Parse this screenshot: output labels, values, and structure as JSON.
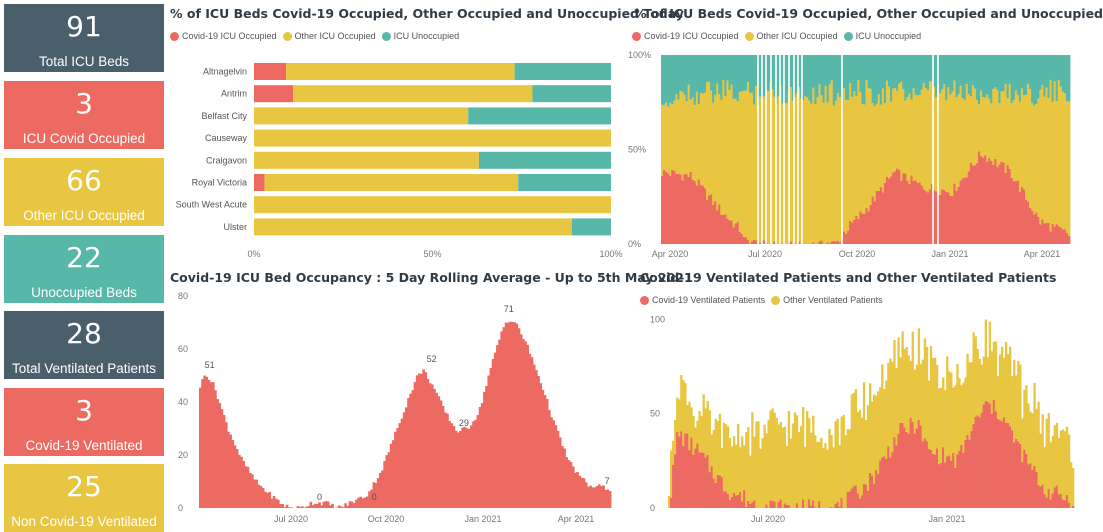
{
  "cards": [
    {
      "value": "91",
      "label": "Total ICU Beds"
    },
    {
      "value": "3",
      "label": "ICU Covid Occupied"
    },
    {
      "value": "66",
      "label": "Other ICU Occupied"
    },
    {
      "value": "22",
      "label": "Unoccupied Beds"
    },
    {
      "value": "28",
      "label": "Total Ventilated Patients"
    },
    {
      "value": "3",
      "label": "Covid-19 Ventilated"
    },
    {
      "value": "25",
      "label": "Non Covid-19 Ventilated"
    }
  ],
  "colors": {
    "slate": "#4a5f6c",
    "red": "#ec6a62",
    "yellow": "#e8c641",
    "teal": "#57b8aa"
  },
  "chart_data": [
    {
      "type": "bar",
      "orientation": "horizontal-stacked-100",
      "title": "% of ICU Beds Covid-19 Occupied, Other Occupied and Unoccupied Today",
      "legend": [
        "Covid-19 ICU Occupied",
        "Other ICU Occupied",
        "ICU Unoccupied"
      ],
      "categories": [
        "Altnagelvin",
        "Antrim",
        "Belfast City",
        "Causeway",
        "Craigavon",
        "Royal Victoria",
        "South West Acute",
        "Ulster"
      ],
      "series": [
        {
          "name": "Covid-19 ICU Occupied",
          "values": [
            9,
            11,
            0,
            0,
            0,
            3,
            0,
            0
          ]
        },
        {
          "name": "Other ICU Occupied",
          "values": [
            64,
            67,
            60,
            100,
            63,
            71,
            100,
            89
          ]
        },
        {
          "name": "ICU Unoccupied",
          "values": [
            27,
            22,
            40,
            0,
            37,
            26,
            0,
            11
          ]
        }
      ],
      "xticks": [
        "0%",
        "50%",
        "100%"
      ]
    },
    {
      "type": "area",
      "stacked": "100%",
      "title": "% of ICU Beds Covid-19 Occupied, Other Occupied and Unoccupied",
      "legend": [
        "Covid-19 ICU Occupied",
        "Other ICU Occupied",
        "ICU Unoccupied"
      ],
      "xticks": [
        "Apr 2020",
        "Jul 2020",
        "Oct 2020",
        "Jan 2021",
        "Apr 2021"
      ],
      "yticks": [
        "0%",
        "50%",
        "100%"
      ],
      "covid_pct_points": [
        [
          0,
          38
        ],
        [
          1,
          36
        ],
        [
          2,
          18
        ],
        [
          3,
          3
        ],
        [
          4,
          0
        ],
        [
          5,
          0
        ],
        [
          6,
          2
        ],
        [
          7,
          18
        ],
        [
          8,
          38
        ],
        [
          9,
          30
        ],
        [
          10,
          28
        ],
        [
          11,
          48
        ],
        [
          12,
          38
        ],
        [
          13,
          12
        ],
        [
          14,
          5
        ]
      ]
    },
    {
      "type": "area",
      "title": "Covid-19 ICU Bed Occupancy : 5 Day Rolling Average - Up to 5th May 2021",
      "xticks": [
        "Jul 2020",
        "Oct 2020",
        "Jan 2021",
        "Apr 2021"
      ],
      "yticks": [
        0,
        20,
        40,
        60,
        80
      ],
      "ylim": [
        0,
        80
      ],
      "data_labels": [
        51,
        0,
        0,
        52,
        29,
        71,
        7
      ],
      "points": [
        [
          0,
          46
        ],
        [
          0.2,
          51
        ],
        [
          0.5,
          46
        ],
        [
          1,
          30
        ],
        [
          1.5,
          18
        ],
        [
          2,
          10
        ],
        [
          2.5,
          5
        ],
        [
          3,
          1
        ],
        [
          3.3,
          0
        ],
        [
          3.6,
          0
        ],
        [
          4,
          2
        ],
        [
          4.5,
          2
        ],
        [
          4.9,
          0
        ],
        [
          5.2,
          1
        ],
        [
          5.6,
          3
        ],
        [
          6,
          5
        ],
        [
          6.5,
          14
        ],
        [
          7,
          28
        ],
        [
          7.5,
          42
        ],
        [
          7.8,
          50
        ],
        [
          8,
          52
        ],
        [
          8.3,
          47
        ],
        [
          8.8,
          36
        ],
        [
          9.2,
          29
        ],
        [
          9.6,
          30
        ],
        [
          10,
          36
        ],
        [
          10.4,
          52
        ],
        [
          10.8,
          66
        ],
        [
          11,
          71
        ],
        [
          11.3,
          70
        ],
        [
          11.7,
          62
        ],
        [
          12.2,
          48
        ],
        [
          12.7,
          32
        ],
        [
          13.2,
          18
        ],
        [
          13.6,
          12
        ],
        [
          14,
          8
        ],
        [
          14.4,
          8
        ],
        [
          14.7,
          7
        ]
      ]
    },
    {
      "type": "area",
      "stacked": true,
      "title": "Covid-19 Ventilated Patients and Other Ventilated Patients",
      "legend": [
        "Covid-19 Ventilated Patients",
        "Other Ventilated Patients"
      ],
      "xticks": [
        "Jul 2020",
        "Jan 2021"
      ],
      "yticks": [
        0,
        50,
        100
      ],
      "ylim": [
        0,
        105
      ]
    }
  ]
}
